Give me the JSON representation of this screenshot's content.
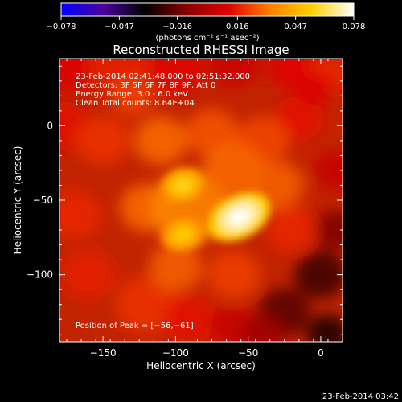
{
  "chart_data": {
    "type": "heatmap",
    "title": "Reconstructed RHESSI Image",
    "xlabel": "Heliocentric X (arcsec)",
    "ylabel": "Heliocentric Y (arcsec)",
    "xlim": [
      -180,
      15
    ],
    "ylim": [
      -145,
      45
    ],
    "x_ticks": [
      -150,
      -100,
      -50,
      0
    ],
    "y_ticks": [
      0,
      -50,
      -100
    ],
    "x_tick_labels": [
      "−150",
      "−100",
      "−50",
      "0"
    ],
    "y_tick_labels": [
      "0",
      "−50",
      "−100"
    ],
    "colorbar": {
      "range": [
        -0.078,
        0.078
      ],
      "ticks": [
        -0.078,
        -0.047,
        -0.016,
        0.016,
        0.047,
        0.078
      ],
      "tick_labels": [
        "−0.078",
        "−0.047",
        "−0.016",
        "0.016",
        "0.047",
        "0.078"
      ],
      "units_label": "(photons cm⁻² s⁻¹ asec⁻²)",
      "colors": [
        "#0000ff",
        "#4b00a0",
        "#000000",
        "#8b0000",
        "#e00000",
        "#ff7f00",
        "#ffd000",
        "#ffffff"
      ]
    },
    "annotations": [
      "23-Feb-2014 02:41:48.000 to 02:51:32.000",
      "Detectors: 3F 5F 6F 7F 8F 9F, Att 0",
      "Energy Range: 3.0 - 6.0 keV",
      "Clean     Total counts: 8.64E+04"
    ],
    "peak_label": "Position of Peak = [−56,−61]",
    "sources": [
      {
        "x": -56,
        "y": -61,
        "value": 0.078
      },
      {
        "x": -95,
        "y": -40,
        "value": 0.058
      },
      {
        "x": -95,
        "y": -73,
        "value": 0.055
      }
    ]
  },
  "footer_timestamp": "23-Feb-2014 03:42"
}
